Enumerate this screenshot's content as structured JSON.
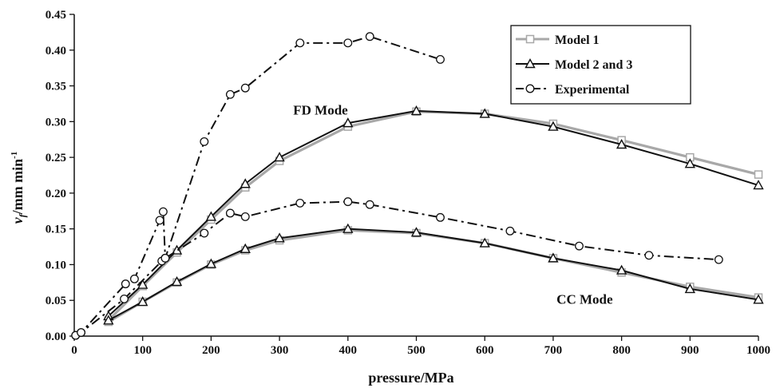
{
  "chart_data": {
    "type": "line",
    "xlabel": "pressure/MPa",
    "ylabel": {
      "main": "v",
      "sub": "f",
      "rest": "/mm min",
      "sup": "-1"
    },
    "xlim": [
      0,
      1000
    ],
    "ylim": [
      0,
      0.45
    ],
    "xticks": [
      "0",
      "100",
      "200",
      "300",
      "400",
      "500",
      "600",
      "700",
      "800",
      "900",
      "1000"
    ],
    "yticks": [
      "0.00",
      "0.05",
      "0.10",
      "0.15",
      "0.20",
      "0.25",
      "0.30",
      "0.35",
      "0.40",
      "0.45"
    ],
    "grid": false,
    "legend_position": "top-right",
    "annotations": [
      {
        "text": "FD Mode",
        "x": 320,
        "y": 0.31
      },
      {
        "text": "CC Mode",
        "x": 705,
        "y": 0.045
      }
    ],
    "series": [
      {
        "name": "Model 1",
        "color": "#a8a8a8",
        "marker": "square",
        "line": "solid",
        "group": "FD",
        "x": [
          50,
          100,
          150,
          200,
          250,
          300,
          400,
          500,
          600,
          700,
          800,
          900,
          1000
        ],
        "y": [
          0.022,
          0.07,
          0.117,
          0.163,
          0.208,
          0.245,
          0.293,
          0.314,
          0.311,
          0.297,
          0.274,
          0.25,
          0.226
        ]
      },
      {
        "name": "Model 2 and 3",
        "color": "#111111",
        "marker": "triangle",
        "line": "solid",
        "group": "FD",
        "x": [
          50,
          100,
          150,
          200,
          250,
          300,
          400,
          500,
          600,
          700,
          800,
          900,
          1000
        ],
        "y": [
          0.028,
          0.072,
          0.12,
          0.167,
          0.213,
          0.25,
          0.298,
          0.315,
          0.311,
          0.293,
          0.268,
          0.241,
          0.211
        ]
      },
      {
        "name": "Model 1",
        "color": "#a8a8a8",
        "marker": "square",
        "line": "solid",
        "group": "CC",
        "x": [
          50,
          100,
          150,
          200,
          250,
          300,
          400,
          500,
          600,
          700,
          800,
          900,
          1000
        ],
        "y": [
          0.02,
          0.048,
          0.075,
          0.1,
          0.12,
          0.134,
          0.148,
          0.144,
          0.13,
          0.109,
          0.089,
          0.069,
          0.054
        ]
      },
      {
        "name": "Model 2 and 3",
        "color": "#111111",
        "marker": "triangle",
        "line": "solid",
        "group": "CC",
        "x": [
          50,
          100,
          150,
          200,
          250,
          300,
          400,
          500,
          600,
          700,
          800,
          900,
          1000
        ],
        "y": [
          0.022,
          0.048,
          0.076,
          0.101,
          0.122,
          0.137,
          0.15,
          0.145,
          0.13,
          0.109,
          0.092,
          0.066,
          0.051
        ]
      },
      {
        "name": "Experimental",
        "color": "#111111",
        "marker": "circle",
        "line": "dashdot",
        "group": "FD",
        "x": [
          2,
          10,
          75,
          88,
          125,
          130,
          133,
          190,
          228,
          250,
          330,
          400,
          432,
          535
        ],
        "y": [
          0.001,
          0.005,
          0.073,
          0.08,
          0.162,
          0.174,
          0.109,
          0.272,
          0.338,
          0.347,
          0.41,
          0.41,
          0.419,
          0.387
        ]
      },
      {
        "name": "Experimental",
        "color": "#111111",
        "marker": "circle",
        "line": "dashdot",
        "group": "CC",
        "x": [
          2,
          10,
          73,
          128,
          133,
          190,
          228,
          250,
          330,
          400,
          432,
          535,
          637,
          738,
          840,
          942
        ],
        "y": [
          0.001,
          0.005,
          0.052,
          0.105,
          0.109,
          0.144,
          0.172,
          0.167,
          0.186,
          0.188,
          0.184,
          0.166,
          0.147,
          0.126,
          0.113,
          0.107
        ]
      }
    ],
    "legend": [
      {
        "label": "Model 1",
        "color": "#a8a8a8",
        "marker": "square",
        "line": "solid"
      },
      {
        "label": "Model 2 and 3",
        "color": "#111111",
        "marker": "triangle",
        "line": "solid"
      },
      {
        "label": "Experimental",
        "color": "#111111",
        "marker": "circle",
        "line": "dashdot"
      }
    ]
  }
}
